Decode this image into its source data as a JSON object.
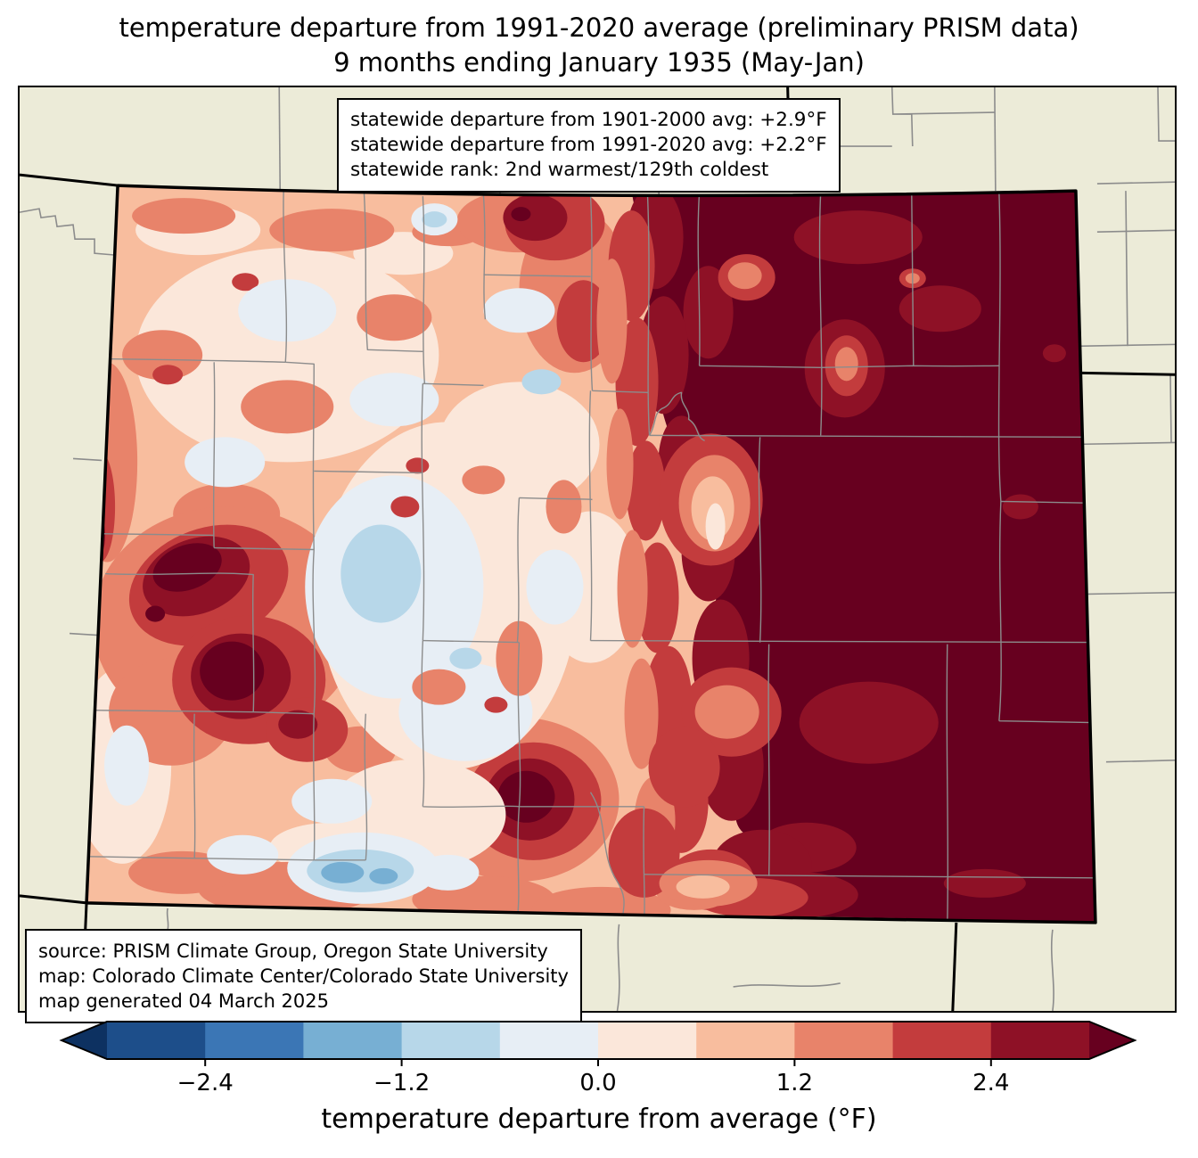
{
  "title": {
    "line1": "temperature departure from 1991-2020 average (preliminary PRISM data)",
    "line2": "9 months ending January 1935 (May-Jan)"
  },
  "stats_box": {
    "lines": [
      "statewide departure from 1901-2000 avg: +2.9°F",
      "statewide departure from 1991-2020 avg: +2.2°F",
      "statewide rank: 2nd warmest/129th coldest"
    ]
  },
  "source_box": {
    "lines": [
      "source: PRISM Climate Group, Oregon State University",
      "map: Colorado Climate Center/Colorado State University",
      "map generated 04 March 2025"
    ]
  },
  "colorbar": {
    "label": "temperature departure from average (°F)",
    "ticks": [
      "−2.4",
      "−1.2",
      "0.0",
      "1.2",
      "2.4"
    ],
    "tick_positions_pct": [
      10,
      30,
      50,
      70,
      90
    ],
    "segment_colors": [
      "#1D4E8A",
      "#3B76B5",
      "#77AFD3",
      "#B7D7E9",
      "#E7EEF5",
      "#FBE7DA",
      "#F8BD9E",
      "#E8836A",
      "#C33C3D",
      "#8E1126"
    ],
    "under_color": "#0D3161",
    "over_color": "#67001F"
  },
  "map": {
    "region": "Colorado",
    "outside_color": "#ECEBD8",
    "county_line_color": "#8C8C8C",
    "state_border_color": "#000000"
  },
  "chart_data": {
    "type": "heatmap",
    "subtype": "filled-contour choropleth map of Colorado",
    "title": "temperature departure from 1991-2020 average (preliminary PRISM data)",
    "subtitle": "9 months ending January 1935 (May-Jan)",
    "units": "°F",
    "variable": "temperature departure from average",
    "statewide_departure_from_1901_2000_avg_F": 2.9,
    "statewide_departure_from_1991_2020_avg_F": 2.2,
    "statewide_rank": "2nd warmest/129th coldest",
    "contour_levels_F": [
      -3.0,
      -2.4,
      -1.8,
      -1.2,
      -0.6,
      0.0,
      0.6,
      1.2,
      1.8,
      2.4,
      3.0
    ],
    "level_colors": [
      "#1D4E8A",
      "#3B76B5",
      "#77AFD3",
      "#B7D7E9",
      "#E7EEF5",
      "#FBE7DA",
      "#F8BD9E",
      "#E8836A",
      "#C33C3D",
      "#8E1126"
    ],
    "colorbar_ticks_F": [
      -2.4,
      -1.2,
      0.0,
      1.2,
      2.4
    ],
    "colorbar_extend": "both",
    "legend_position": "bottom",
    "spatial_pattern": {
      "eastern_plains": "departures above +3.0°F (darkest maroon), covering roughly the eastern third of the state",
      "front_range_transition": "north-south band stepping down +2.4 to +1.2°F along the Front Range",
      "western_valleys": "mottled +0.6 to +1.2°F (light salmon) with pale 0 to +0.6°F patches",
      "west_central_hotspots": "two blobs exceeding +3.0°F in west-central Colorado",
      "north_central_hotspot": "small area above +2.4°F near the north-central border",
      "south_central_hotspot": "blob above +3.0°F in the south-central mountains",
      "central_cool_patches": "small areas of -0.6 to -1.8°F (light blue) in the central and south-central mountains"
    },
    "source": "PRISM Climate Group, Oregon State University",
    "map_credit": "Colorado Climate Center/Colorado State University",
    "generated": "04 March 2025"
  }
}
